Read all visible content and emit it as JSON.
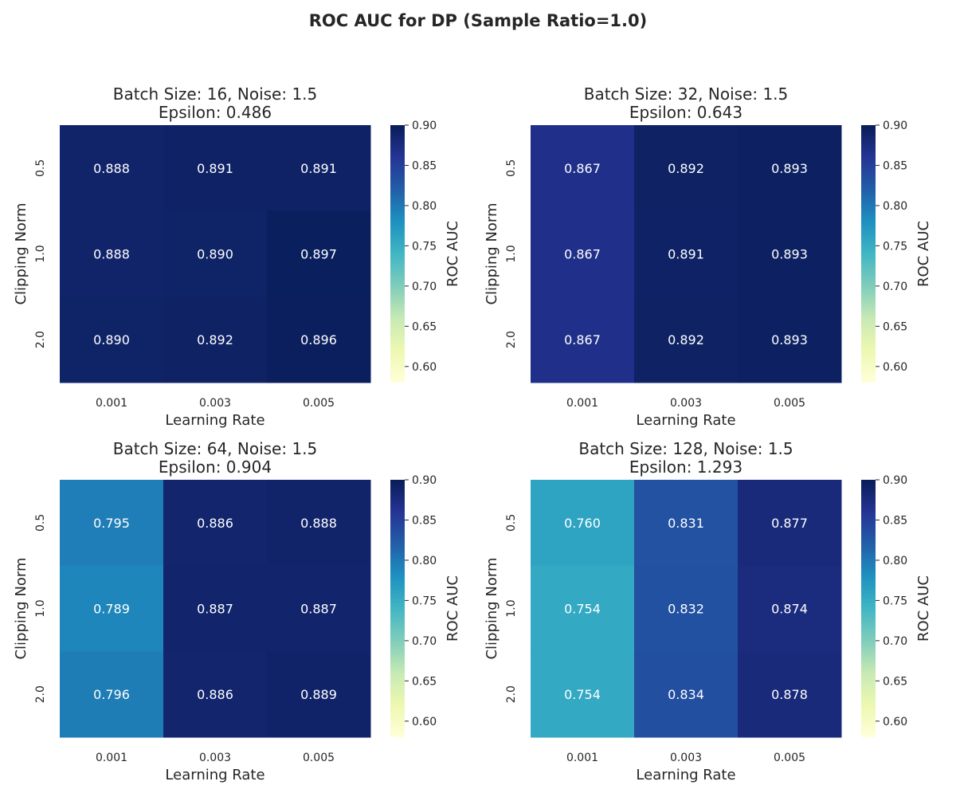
{
  "title": "ROC AUC for DP (Sample Ratio=1.0)",
  "chart_data": {
    "type": "heatmap",
    "colormap": "YlGnBu",
    "color_range": [
      0.58,
      0.9
    ],
    "colorbar_ticks": [
      "0.60",
      "0.65",
      "0.70",
      "0.75",
      "0.80",
      "0.85",
      "0.90"
    ],
    "colorbar_label": "ROC AUC",
    "xlabel": "Learning Rate",
    "ylabel": "Clipping Norm",
    "x_categories": [
      "0.001",
      "0.003",
      "0.005"
    ],
    "y_categories": [
      "0.5",
      "1.0",
      "2.0"
    ],
    "panels": [
      {
        "title_line1": "Batch Size: 16, Noise: 1.5",
        "title_line2": "Epsilon: 0.486",
        "values": [
          [
            0.888,
            0.891,
            0.891
          ],
          [
            0.888,
            0.89,
            0.897
          ],
          [
            0.89,
            0.892,
            0.896
          ]
        ]
      },
      {
        "title_line1": "Batch Size: 32, Noise: 1.5",
        "title_line2": "Epsilon: 0.643",
        "values": [
          [
            0.867,
            0.892,
            0.893
          ],
          [
            0.867,
            0.891,
            0.893
          ],
          [
            0.867,
            0.892,
            0.893
          ]
        ]
      },
      {
        "title_line1": "Batch Size: 64, Noise: 1.5",
        "title_line2": "Epsilon: 0.904",
        "values": [
          [
            0.795,
            0.886,
            0.888
          ],
          [
            0.789,
            0.887,
            0.887
          ],
          [
            0.796,
            0.886,
            0.889
          ]
        ]
      },
      {
        "title_line1": "Batch Size: 128, Noise: 1.5",
        "title_line2": "Epsilon: 1.293",
        "values": [
          [
            0.76,
            0.831,
            0.877
          ],
          [
            0.754,
            0.832,
            0.874
          ],
          [
            0.754,
            0.834,
            0.878
          ]
        ]
      }
    ]
  }
}
